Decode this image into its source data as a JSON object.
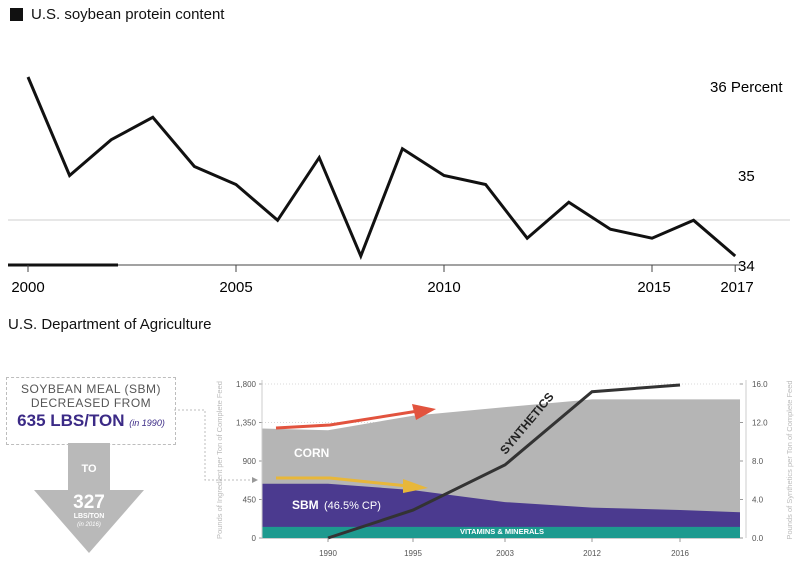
{
  "top_chart": {
    "legend_label": "U.S. soybean protein content",
    "source": "U.S. Department of Agriculture",
    "y_labels": [
      "36 Percent",
      "35",
      "34"
    ],
    "x_labels": [
      "2000",
      "2005",
      "2010",
      "2015",
      "2017"
    ]
  },
  "callout": {
    "line1": "SOYBEAN MEAL (SBM)",
    "line2": "DECREASED FROM",
    "value_from": "635 LBS/TON",
    "value_from_note": "(in 1990)",
    "to_label": "TO",
    "value_to": "327",
    "value_to_unit": "LBS/TON",
    "value_to_note": "(in 2016)"
  },
  "bottom_chart": {
    "left_axis_label": "Pounds of Ingredient per Ton of Complete Feed",
    "right_axis_label": "Pounds of Synthetics per Ton of Complete Feed",
    "left_ticks": [
      "1,800",
      "1,350",
      "900",
      "450",
      "0"
    ],
    "right_ticks": [
      "16.0",
      "12.0",
      "8.0",
      "4.0",
      "0.0"
    ],
    "x_labels": [
      "1990",
      "1995",
      "2003",
      "2012",
      "2016"
    ],
    "labels": {
      "corn": "CORN",
      "sbm": "SBM",
      "sbm_note": "(46.5% CP)",
      "vitamins": "VITAMINS & MINERALS",
      "synthetics": "SYNTHETICS"
    }
  },
  "colors": {
    "corn": "#b5b5b5",
    "sbm": "#4b3a8f",
    "vitamins": "#1d9a8f",
    "synthetics": "#333333",
    "red_arrow": "#e2533e",
    "yellow_arrow": "#e8b73a",
    "callout_navy": "#3b2a86"
  },
  "chart_data": [
    {
      "type": "line",
      "title": "U.S. soybean protein content",
      "ylabel": "Percent",
      "ylim": [
        34,
        36.2
      ],
      "x": [
        2000,
        2001,
        2002,
        2003,
        2004,
        2005,
        2006,
        2007,
        2008,
        2009,
        2010,
        2011,
        2012,
        2013,
        2014,
        2015,
        2016,
        2017
      ],
      "series": [
        {
          "name": "U.S. soybean protein content",
          "values": [
            36.1,
            35.0,
            35.4,
            35.65,
            35.1,
            34.9,
            34.5,
            35.2,
            34.1,
            35.3,
            35.0,
            34.9,
            34.3,
            34.7,
            34.4,
            34.3,
            34.5,
            34.1
          ]
        }
      ],
      "legend": "top-left",
      "source": "U.S. Department of Agriculture"
    },
    {
      "type": "area",
      "categories": [
        "1990",
        "1995",
        "2003",
        "2012",
        "2016"
      ],
      "ylim_left": [
        0,
        1800
      ],
      "ylim_right": [
        0,
        16
      ],
      "series": [
        {
          "name": "VITAMINS & MINERALS",
          "values": [
            130,
            130,
            130,
            130,
            130
          ]
        },
        {
          "name": "SBM",
          "values": [
            635,
            560,
            420,
            355,
            327
          ]
        },
        {
          "name": "CORN",
          "values": [
            1260,
            1430,
            1530,
            1620,
            1620
          ]
        },
        {
          "name": "SYNTHETICS",
          "axis": "right",
          "values": [
            0,
            2.9,
            7.6,
            15.2,
            15.9
          ]
        }
      ]
    }
  ]
}
